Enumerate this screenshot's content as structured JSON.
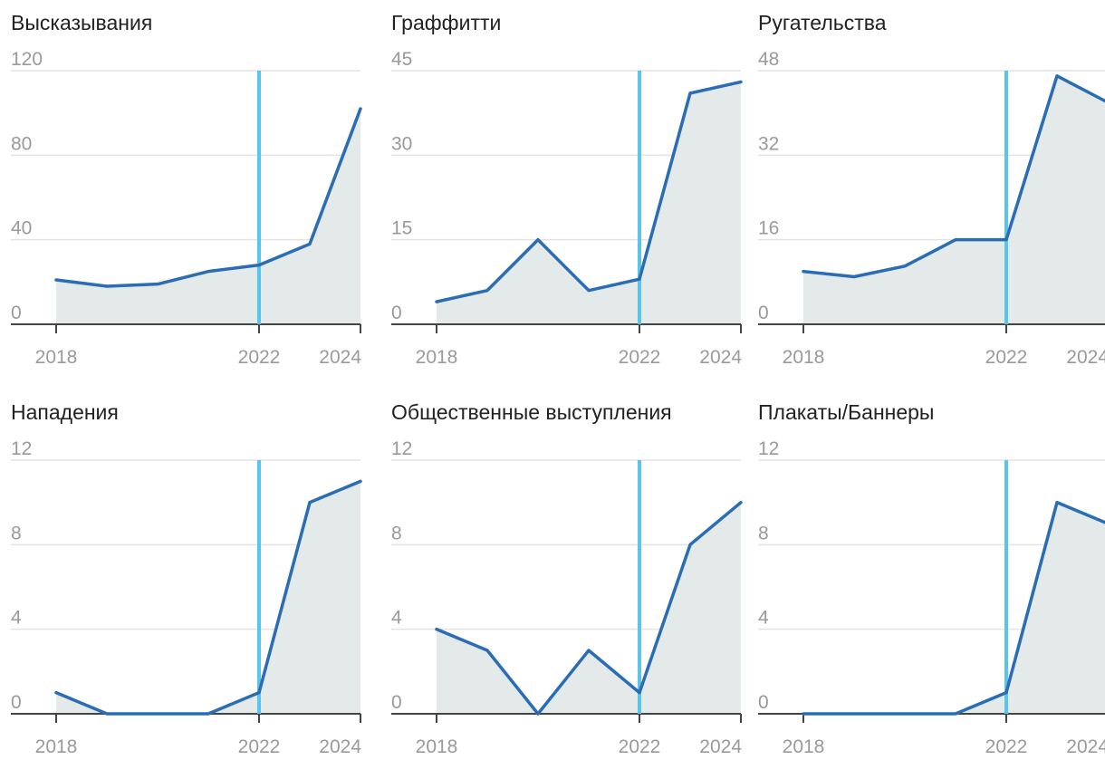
{
  "colors": {
    "line": "#2a6db5",
    "area": "#e4eaea",
    "marker": "#5bc4ea",
    "grid": "#e3e3e3",
    "axis": "#444444",
    "tick_text": "#9a9a9a",
    "title_text": "#222222"
  },
  "chart_data": [
    {
      "type": "area",
      "title": "Высказывания",
      "x": [
        2018,
        2019,
        2020,
        2021,
        2022,
        2023,
        2024
      ],
      "values": [
        21,
        18,
        19,
        25,
        28,
        38,
        102
      ],
      "ylim": [
        0,
        120
      ],
      "yticks": [
        "0",
        "40",
        "80",
        "120"
      ],
      "xticks": [
        "2018",
        "2022",
        "2024"
      ],
      "marker_x": 2022,
      "grid": true
    },
    {
      "type": "area",
      "title": "Граффитти",
      "x": [
        2018,
        2019,
        2020,
        2021,
        2022,
        2023,
        2024
      ],
      "values": [
        4,
        6,
        15,
        6,
        8,
        41,
        43
      ],
      "ylim": [
        0,
        45
      ],
      "yticks": [
        "0",
        "15",
        "30",
        "45"
      ],
      "xticks": [
        "2018",
        "2022",
        "2024"
      ],
      "marker_x": 2022,
      "grid": true
    },
    {
      "type": "area",
      "title": "Ругательства",
      "x": [
        2018,
        2019,
        2020,
        2021,
        2022,
        2023,
        2024
      ],
      "values": [
        10,
        9,
        11,
        16,
        16,
        47,
        42
      ],
      "ylim": [
        0,
        48
      ],
      "yticks": [
        "0",
        "16",
        "32",
        "48"
      ],
      "xticks": [
        "2018",
        "2022",
        "2024"
      ],
      "marker_x": 2022,
      "grid": true
    },
    {
      "type": "area",
      "title": "Нападения",
      "x": [
        2018,
        2019,
        2020,
        2021,
        2022,
        2023,
        2024
      ],
      "values": [
        1,
        0,
        0,
        0,
        1,
        10,
        11
      ],
      "ylim": [
        0,
        12
      ],
      "yticks": [
        "0",
        "4",
        "8",
        "12"
      ],
      "xticks": [
        "2018",
        "2022",
        "2024"
      ],
      "marker_x": 2022,
      "grid": true
    },
    {
      "type": "area",
      "title": "Общественные выступления",
      "x": [
        2018,
        2019,
        2020,
        2021,
        2022,
        2023,
        2024
      ],
      "values": [
        4,
        3,
        0,
        3,
        1,
        8,
        10
      ],
      "ylim": [
        0,
        12
      ],
      "yticks": [
        "0",
        "4",
        "8",
        "12"
      ],
      "xticks": [
        "2018",
        "2022",
        "2024"
      ],
      "marker_x": 2022,
      "grid": true
    },
    {
      "type": "area",
      "title": "Плакаты/Баннеры",
      "x": [
        2018,
        2019,
        2020,
        2021,
        2022,
        2023,
        2024
      ],
      "values": [
        0,
        0,
        0,
        0,
        1,
        10,
        9
      ],
      "ylim": [
        0,
        12
      ],
      "yticks": [
        "0",
        "4",
        "8",
        "12"
      ],
      "xticks": [
        "2018",
        "2022",
        "2024"
      ],
      "marker_x": 2022,
      "grid": true
    }
  ]
}
